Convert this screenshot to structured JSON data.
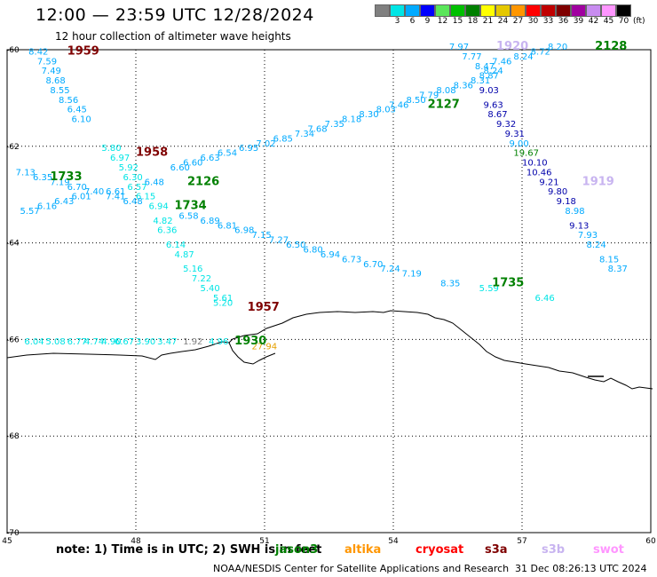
{
  "header": {
    "title": "12:00 — 23:59 UTC 12/28/2024",
    "subtitle": "12 hour collection of altimeter wave heights"
  },
  "legend": {
    "colors": [
      "#808080",
      "#00e5e5",
      "#00aaff",
      "#0000ff",
      "#5ae65a",
      "#00c000",
      "#008000",
      "#ffff00",
      "#e5c800",
      "#ff9600",
      "#ff0000",
      "#c00000",
      "#7f0000",
      "#a000a0",
      "#c88cf0",
      "#ff96ff",
      "#000000"
    ],
    "labels": [
      "",
      "3",
      "6",
      "9",
      "12",
      "15",
      "18",
      "21",
      "24",
      "27",
      "30",
      "33",
      "36",
      "39",
      "42",
      "45",
      "70"
    ],
    "unit": "(ft)"
  },
  "map": {
    "lon_ticks": [
      "45",
      "48",
      "51",
      "54",
      "57",
      "60"
    ],
    "lat_ticks": [
      "-60",
      "-62",
      "-64",
      "-66",
      "-68",
      "-70"
    ],
    "coastline_icon": "antarctic-coastline",
    "measurements": [
      {
        "t": "8.42",
        "lon": 45.5,
        "lat": -60.1,
        "c": "#00aaff"
      },
      {
        "t": "7.59",
        "lon": 45.7,
        "lat": -60.3,
        "c": "#00aaff"
      },
      {
        "t": "7.49",
        "lon": 45.8,
        "lat": -60.5,
        "c": "#00aaff"
      },
      {
        "t": "8.68",
        "lon": 45.9,
        "lat": -60.7,
        "c": "#00aaff"
      },
      {
        "t": "8.55",
        "lon": 46.0,
        "lat": -60.9,
        "c": "#00aaff"
      },
      {
        "t": "8.56",
        "lon": 46.2,
        "lat": -61.1,
        "c": "#00aaff"
      },
      {
        "t": "6.45",
        "lon": 46.4,
        "lat": -61.3,
        "c": "#00aaff"
      },
      {
        "t": "6.10",
        "lon": 46.5,
        "lat": -61.5,
        "c": "#00aaff"
      },
      {
        "t": "5.80",
        "lon": 47.2,
        "lat": -62.1,
        "c": "#00e5e5"
      },
      {
        "t": "6.97",
        "lon": 47.4,
        "lat": -62.3,
        "c": "#00e5e5"
      },
      {
        "t": "5.92",
        "lon": 47.6,
        "lat": -62.5,
        "c": "#00e5e5"
      },
      {
        "t": "6.30",
        "lon": 47.7,
        "lat": -62.7,
        "c": "#00e5e5"
      },
      {
        "t": "6.57",
        "lon": 47.8,
        "lat": -62.9,
        "c": "#00e5e5"
      },
      {
        "t": "6.15",
        "lon": 48.0,
        "lat": -63.1,
        "c": "#00e5e5"
      },
      {
        "t": "6.94",
        "lon": 48.3,
        "lat": -63.3,
        "c": "#00e5e5"
      },
      {
        "t": "4.82",
        "lon": 48.4,
        "lat": -63.6,
        "c": "#00e5e5"
      },
      {
        "t": "6.36",
        "lon": 48.5,
        "lat": -63.8,
        "c": "#00e5e5"
      },
      {
        "t": "6.14",
        "lon": 48.7,
        "lat": -64.1,
        "c": "#00e5e5"
      },
      {
        "t": "4.87",
        "lon": 48.9,
        "lat": -64.3,
        "c": "#00e5e5"
      },
      {
        "t": "5.16",
        "lon": 49.1,
        "lat": -64.6,
        "c": "#00e5e5"
      },
      {
        "t": "7.22",
        "lon": 49.3,
        "lat": -64.8,
        "c": "#00e5e5"
      },
      {
        "t": "5.40",
        "lon": 49.5,
        "lat": -65.0,
        "c": "#00e5e5"
      },
      {
        "t": "5.61",
        "lon": 49.8,
        "lat": -65.2,
        "c": "#00e5e5"
      },
      {
        "t": "5.20",
        "lon": 49.8,
        "lat": -65.3,
        "c": "#00e5e5"
      },
      {
        "t": "7.13",
        "lon": 45.2,
        "lat": -62.6,
        "c": "#00aaff"
      },
      {
        "t": "6.35",
        "lon": 45.6,
        "lat": -62.7,
        "c": "#00aaff"
      },
      {
        "t": "7.19",
        "lon": 46.0,
        "lat": -62.8,
        "c": "#00aaff"
      },
      {
        "t": "6.70",
        "lon": 46.4,
        "lat": -62.9,
        "c": "#00aaff"
      },
      {
        "t": "7.40",
        "lon": 46.8,
        "lat": -63.0,
        "c": "#00aaff"
      },
      {
        "t": "6.61",
        "lon": 47.3,
        "lat": -63.0,
        "c": "#00aaff"
      },
      {
        "t": "7.41",
        "lon": 47.3,
        "lat": -63.1,
        "c": "#00aaff"
      },
      {
        "t": "6.01",
        "lon": 46.5,
        "lat": -63.1,
        "c": "#00aaff"
      },
      {
        "t": "6.43",
        "lon": 46.1,
        "lat": -63.2,
        "c": "#00aaff"
      },
      {
        "t": "6.16",
        "lon": 45.7,
        "lat": -63.3,
        "c": "#00aaff"
      },
      {
        "t": "5.57",
        "lon": 45.3,
        "lat": -63.4,
        "c": "#00aaff"
      },
      {
        "t": "6.48",
        "lon": 47.7,
        "lat": -63.2,
        "c": "#00aaff"
      },
      {
        "t": "6.58",
        "lon": 49.0,
        "lat": -63.5,
        "c": "#00aaff"
      },
      {
        "t": "6.89",
        "lon": 49.5,
        "lat": -63.6,
        "c": "#00aaff"
      },
      {
        "t": "6.81",
        "lon": 49.9,
        "lat": -63.7,
        "c": "#00aaff"
      },
      {
        "t": "6.98",
        "lon": 50.3,
        "lat": -63.8,
        "c": "#00aaff"
      },
      {
        "t": "7.15",
        "lon": 50.7,
        "lat": -63.9,
        "c": "#00aaff"
      },
      {
        "t": "7.27",
        "lon": 51.1,
        "lat": -64.0,
        "c": "#00aaff"
      },
      {
        "t": "6.50",
        "lon": 51.5,
        "lat": -64.1,
        "c": "#00aaff"
      },
      {
        "t": "6.80",
        "lon": 51.9,
        "lat": -64.2,
        "c": "#00aaff"
      },
      {
        "t": "6.94",
        "lon": 52.3,
        "lat": -64.3,
        "c": "#00aaff"
      },
      {
        "t": "6.73",
        "lon": 52.8,
        "lat": -64.4,
        "c": "#00aaff"
      },
      {
        "t": "6.70",
        "lon": 53.3,
        "lat": -64.5,
        "c": "#00aaff"
      },
      {
        "t": "7.24",
        "lon": 53.7,
        "lat": -64.6,
        "c": "#00aaff"
      },
      {
        "t": "7.19",
        "lon": 54.2,
        "lat": -64.7,
        "c": "#00aaff"
      },
      {
        "t": "8.35",
        "lon": 55.1,
        "lat": -64.9,
        "c": "#00aaff"
      },
      {
        "t": "5.59",
        "lon": 56.0,
        "lat": -65.0,
        "c": "#00e5e5"
      },
      {
        "t": "6.46",
        "lon": 57.3,
        "lat": -65.2,
        "c": "#00e5e5"
      },
      {
        "t": "6.48",
        "lon": 48.2,
        "lat": -62.8,
        "c": "#00aaff"
      },
      {
        "t": "6.60",
        "lon": 48.8,
        "lat": -62.5,
        "c": "#00aaff"
      },
      {
        "t": "6.60",
        "lon": 49.1,
        "lat": -62.4,
        "c": "#00aaff"
      },
      {
        "t": "6.63",
        "lon": 49.5,
        "lat": -62.3,
        "c": "#00aaff"
      },
      {
        "t": "6.54",
        "lon": 49.9,
        "lat": -62.2,
        "c": "#00aaff"
      },
      {
        "t": "6.95",
        "lon": 50.4,
        "lat": -62.1,
        "c": "#00aaff"
      },
      {
        "t": "7.02",
        "lon": 50.8,
        "lat": -62.0,
        "c": "#00aaff"
      },
      {
        "t": "6.85",
        "lon": 51.2,
        "lat": -61.9,
        "c": "#00aaff"
      },
      {
        "t": "7.34",
        "lon": 51.7,
        "lat": -61.8,
        "c": "#00aaff"
      },
      {
        "t": "7.68",
        "lon": 52.0,
        "lat": -61.7,
        "c": "#00aaff"
      },
      {
        "t": "7.35",
        "lon": 52.4,
        "lat": -61.6,
        "c": "#00aaff"
      },
      {
        "t": "8.18",
        "lon": 52.8,
        "lat": -61.5,
        "c": "#00aaff"
      },
      {
        "t": "8.30",
        "lon": 53.2,
        "lat": -61.4,
        "c": "#00aaff"
      },
      {
        "t": "8.03",
        "lon": 53.6,
        "lat": -61.3,
        "c": "#00aaff"
      },
      {
        "t": "7.46",
        "lon": 53.9,
        "lat": -61.2,
        "c": "#00aaff"
      },
      {
        "t": "8.50",
        "lon": 54.3,
        "lat": -61.1,
        "c": "#00aaff"
      },
      {
        "t": "7.79",
        "lon": 54.6,
        "lat": -61.0,
        "c": "#00aaff"
      },
      {
        "t": "8.08",
        "lon": 55.0,
        "lat": -60.9,
        "c": "#00aaff"
      },
      {
        "t": "8.36",
        "lon": 55.4,
        "lat": -60.8,
        "c": "#00aaff"
      },
      {
        "t": "8.31",
        "lon": 55.8,
        "lat": -60.7,
        "c": "#00aaff"
      },
      {
        "t": "8.24",
        "lon": 56.1,
        "lat": -60.5,
        "c": "#00aaff"
      },
      {
        "t": "7.46",
        "lon": 56.3,
        "lat": -60.3,
        "c": "#00aaff"
      },
      {
        "t": "8.47",
        "lon": 55.9,
        "lat": -60.4,
        "c": "#00aaff"
      },
      {
        "t": "7.77",
        "lon": 55.6,
        "lat": -60.2,
        "c": "#00aaff"
      },
      {
        "t": "7.97",
        "lon": 55.3,
        "lat": -60.0,
        "c": "#00aaff"
      },
      {
        "t": "8.87",
        "lon": 56.0,
        "lat": -60.6,
        "c": "#00aaff"
      },
      {
        "t": "8.24",
        "lon": 56.8,
        "lat": -60.2,
        "c": "#00aaff"
      },
      {
        "t": "8.72",
        "lon": 57.2,
        "lat": -60.1,
        "c": "#00aaff"
      },
      {
        "t": "8.20",
        "lon": 57.6,
        "lat": -60.0,
        "c": "#00aaff"
      },
      {
        "t": "9.03",
        "lon": 56.0,
        "lat": -60.9,
        "c": "#0000aa"
      },
      {
        "t": "9.63",
        "lon": 56.1,
        "lat": -61.2,
        "c": "#0000aa"
      },
      {
        "t": "8.67",
        "lon": 56.2,
        "lat": -61.4,
        "c": "#0000aa"
      },
      {
        "t": "9.32",
        "lon": 56.4,
        "lat": -61.6,
        "c": "#0000aa"
      },
      {
        "t": "9.31",
        "lon": 56.6,
        "lat": -61.8,
        "c": "#0000aa"
      },
      {
        "t": "9.00",
        "lon": 56.7,
        "lat": -62.0,
        "c": "#00aaff"
      },
      {
        "t": "19.67",
        "lon": 56.8,
        "lat": -62.2,
        "c": "#008000"
      },
      {
        "t": "10.10",
        "lon": 57.0,
        "lat": -62.4,
        "c": "#0000aa"
      },
      {
        "t": "10.46",
        "lon": 57.1,
        "lat": -62.6,
        "c": "#0000aa"
      },
      {
        "t": "9.21",
        "lon": 57.4,
        "lat": -62.8,
        "c": "#0000aa"
      },
      {
        "t": "9.80",
        "lon": 57.6,
        "lat": -63.0,
        "c": "#0000aa"
      },
      {
        "t": "9.18",
        "lon": 57.8,
        "lat": -63.2,
        "c": "#0000aa"
      },
      {
        "t": "8.98",
        "lon": 58.0,
        "lat": -63.4,
        "c": "#00aaff"
      },
      {
        "t": "9.13",
        "lon": 58.1,
        "lat": -63.7,
        "c": "#0000aa"
      },
      {
        "t": "7.93",
        "lon": 58.3,
        "lat": -63.9,
        "c": "#00aaff"
      },
      {
        "t": "8.24",
        "lon": 58.5,
        "lat": -64.1,
        "c": "#00aaff"
      },
      {
        "t": "8.15",
        "lon": 58.8,
        "lat": -64.4,
        "c": "#00aaff"
      },
      {
        "t": "8.37",
        "lon": 59.0,
        "lat": -64.6,
        "c": "#00aaff"
      },
      {
        "t": "6.04",
        "lon": 45.4,
        "lat": -66.1,
        "c": "#00e5e5"
      },
      {
        "t": "5.08",
        "lon": 45.9,
        "lat": -66.1,
        "c": "#00e5e5"
      },
      {
        "t": "6.77",
        "lon": 46.4,
        "lat": -66.1,
        "c": "#00e5e5"
      },
      {
        "t": "4.74",
        "lon": 46.8,
        "lat": -66.1,
        "c": "#00e5e5"
      },
      {
        "t": "4.90",
        "lon": 47.2,
        "lat": -66.1,
        "c": "#00e5e5"
      },
      {
        "t": "6.67",
        "lon": 47.5,
        "lat": -66.1,
        "c": "#00e5e5"
      },
      {
        "t": "3.90",
        "lon": 48.0,
        "lat": -66.1,
        "c": "#00e5e5"
      },
      {
        "t": "3.47",
        "lon": 48.5,
        "lat": -66.1,
        "c": "#00e5e5"
      },
      {
        "t": "1.92",
        "lon": 49.1,
        "lat": -66.1,
        "c": "#808080"
      },
      {
        "t": "4.96",
        "lon": 49.7,
        "lat": -66.1,
        "c": "#00e5e5"
      },
      {
        "t": "27.94",
        "lon": 50.7,
        "lat": -66.2,
        "c": "#e5a000"
      }
    ],
    "time_labels": [
      {
        "t": "1959",
        "lon": 46.4,
        "lat": -60.1,
        "c": "#7f0000"
      },
      {
        "t": "1958",
        "lon": 48.0,
        "lat": -62.2,
        "c": "#7f0000"
      },
      {
        "t": "1733",
        "lon": 46.0,
        "lat": -62.7,
        "c": "#008000"
      },
      {
        "t": "2126",
        "lon": 49.2,
        "lat": -62.8,
        "c": "#008000"
      },
      {
        "t": "1734",
        "lon": 48.9,
        "lat": -63.3,
        "c": "#008000"
      },
      {
        "t": "1957",
        "lon": 50.6,
        "lat": -65.4,
        "c": "#7f0000"
      },
      {
        "t": "1930",
        "lon": 50.3,
        "lat": -66.1,
        "c": "#008000"
      },
      {
        "t": "2127",
        "lon": 54.8,
        "lat": -61.2,
        "c": "#008000"
      },
      {
        "t": "1920",
        "lon": 56.4,
        "lat": -60.0,
        "c": "#c8b4f0"
      },
      {
        "t": "2128",
        "lon": 58.7,
        "lat": -60.0,
        "c": "#008000"
      },
      {
        "t": "1919",
        "lon": 58.4,
        "lat": -62.8,
        "c": "#c8b4f0"
      },
      {
        "t": "1735",
        "lon": 56.3,
        "lat": -64.9,
        "c": "#008000"
      }
    ]
  },
  "footer": {
    "note": "note: 1) Time is in UTC; 2) SWH is in feet",
    "satellites": [
      {
        "name": "jason3",
        "color": "#008000"
      },
      {
        "name": "altika",
        "color": "#ff9600"
      },
      {
        "name": "cryosat",
        "color": "#ff0000"
      },
      {
        "name": "s3a",
        "color": "#7f0000"
      },
      {
        "name": "s3b",
        "color": "#c8b4f0"
      },
      {
        "name": "swot",
        "color": "#ff96ff"
      }
    ],
    "credit": "NOAA/NESDIS Center for Satellite Applications and Research",
    "timestamp": "31 Dec 08:26:13 UTC 2024"
  }
}
